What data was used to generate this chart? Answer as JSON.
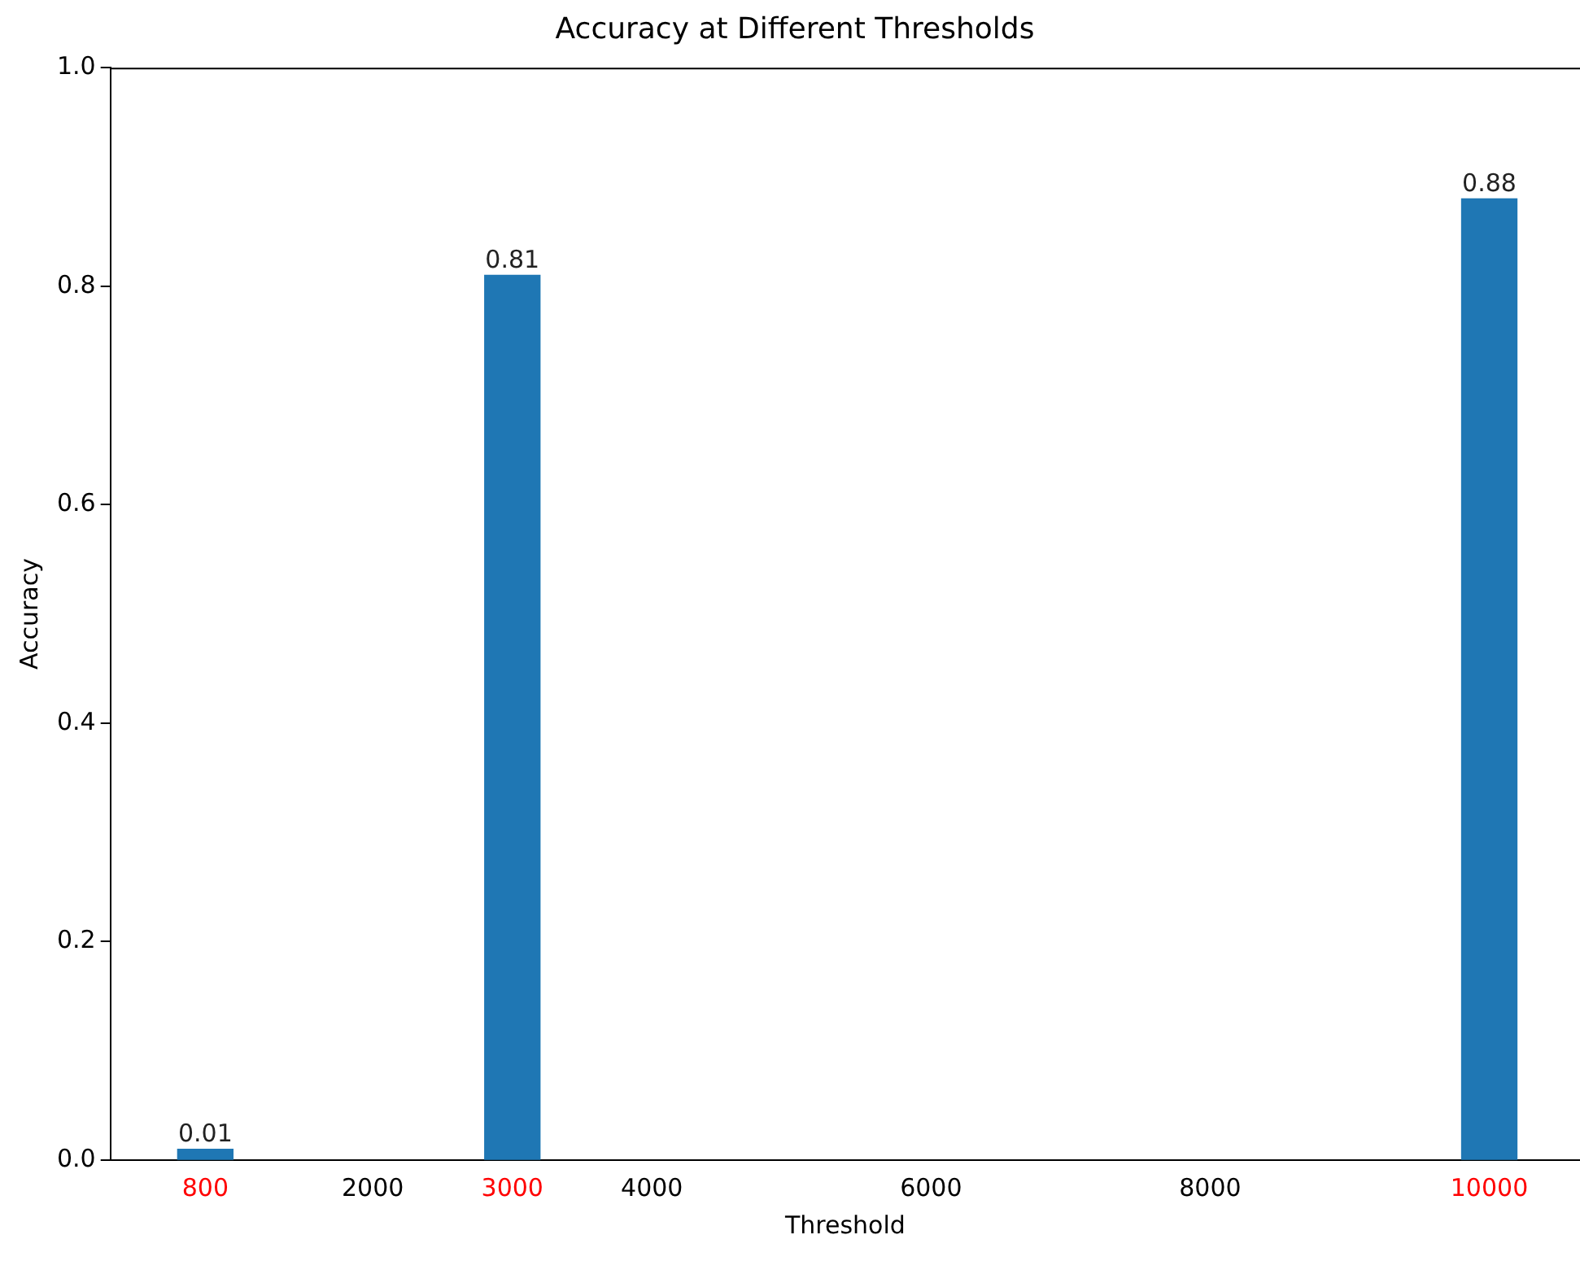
{
  "chart_data": {
    "type": "bar",
    "title": "Accuracy at Different Thresholds",
    "xlabel": "Threshold",
    "ylabel": "Accuracy",
    "x": [
      800,
      3000,
      10000
    ],
    "values": [
      0.01,
      0.81,
      0.88
    ],
    "color": "#1f77b4",
    "data_labels": true,
    "xlim": [
      120,
      10650
    ],
    "xticks": [
      800,
      2000,
      3000,
      4000,
      6000,
      8000,
      10000
    ],
    "ylim": [
      0,
      1
    ],
    "yticks": [
      {
        "value": 0,
        "label": "0.0"
      },
      {
        "value": 0.2,
        "label": "0.2"
      },
      {
        "value": 0.4,
        "label": "0.4"
      },
      {
        "value": 0.6,
        "label": "0.6"
      },
      {
        "value": 0.8,
        "label": "0.8"
      },
      {
        "value": 1,
        "label": "1.0"
      }
    ],
    "grid": false,
    "legend": false
  }
}
